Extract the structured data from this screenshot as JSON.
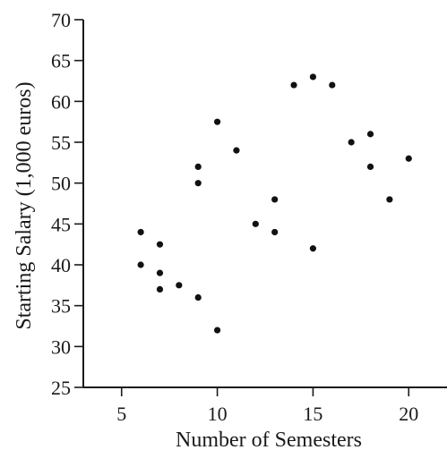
{
  "chart_data": {
    "type": "scatter",
    "xlabel": "Number of Semesters",
    "ylabel": "Starting Salary (1,000 euros)",
    "xlim": [
      3,
      22
    ],
    "ylim": [
      25,
      70
    ],
    "x_ticks": [
      5,
      10,
      15,
      20
    ],
    "y_ticks": [
      25,
      30,
      35,
      40,
      45,
      50,
      55,
      60,
      65,
      70
    ],
    "grid": false,
    "points": [
      {
        "x": 6,
        "y": 44
      },
      {
        "x": 6,
        "y": 40
      },
      {
        "x": 7,
        "y": 42.5
      },
      {
        "x": 7,
        "y": 39
      },
      {
        "x": 7,
        "y": 37
      },
      {
        "x": 8,
        "y": 37.5
      },
      {
        "x": 9,
        "y": 52
      },
      {
        "x": 9,
        "y": 50
      },
      {
        "x": 9,
        "y": 36
      },
      {
        "x": 10,
        "y": 57.5
      },
      {
        "x": 10,
        "y": 32
      },
      {
        "x": 11,
        "y": 54
      },
      {
        "x": 12,
        "y": 45
      },
      {
        "x": 13,
        "y": 48
      },
      {
        "x": 13,
        "y": 44
      },
      {
        "x": 14,
        "y": 62
      },
      {
        "x": 15,
        "y": 63
      },
      {
        "x": 15,
        "y": 42
      },
      {
        "x": 16,
        "y": 62
      },
      {
        "x": 17,
        "y": 55
      },
      {
        "x": 18,
        "y": 56
      },
      {
        "x": 18,
        "y": 52
      },
      {
        "x": 19,
        "y": 48
      },
      {
        "x": 20,
        "y": 53
      }
    ],
    "marker_color": "#111111",
    "axis_color": "#1a1a1a"
  }
}
